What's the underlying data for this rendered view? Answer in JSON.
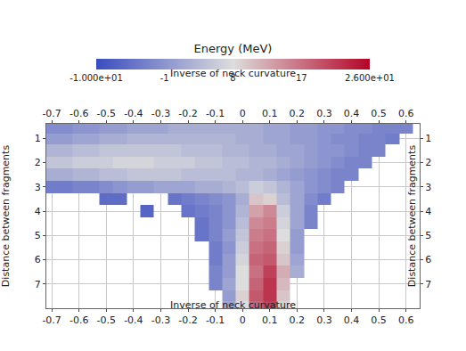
{
  "chart_data": {
    "type": "heatmap",
    "x_label": "Inverse of neck curvature",
    "y_label": "Distance between fragments",
    "x": [
      -0.7,
      -0.65,
      -0.6,
      -0.55,
      -0.5,
      -0.45,
      -0.4,
      -0.35,
      -0.3,
      -0.25,
      -0.2,
      -0.15,
      -0.1,
      -0.05,
      0,
      0.05,
      0.1,
      0.15,
      0.2,
      0.25,
      0.3,
      0.35,
      0.4,
      0.45,
      0.5,
      0.55,
      0.6
    ],
    "y": [
      0.6,
      1,
      1.5,
      2,
      2.5,
      3,
      3.5,
      4,
      4.5,
      5,
      5.5,
      6,
      6.5,
      7,
      7.5,
      7.9
    ],
    "z": [
      [
        -2,
        -2,
        -1,
        -1,
        0,
        0,
        1,
        1,
        1,
        2,
        2,
        2,
        2,
        2,
        2,
        2,
        1,
        1,
        0,
        0,
        -1,
        -1,
        -2,
        -2,
        -3,
        -3,
        -3
      ],
      [
        0,
        0,
        1,
        1,
        2,
        2,
        3,
        3,
        3,
        3,
        3,
        3,
        3,
        3,
        2,
        2,
        1,
        1,
        0,
        0,
        -1,
        -2,
        -2,
        -3,
        -3,
        -4,
        null
      ],
      [
        3,
        3,
        4,
        4,
        5,
        5,
        5,
        5,
        5,
        5,
        4,
        4,
        4,
        3,
        3,
        2,
        2,
        1,
        1,
        0,
        -1,
        -1,
        -2,
        -3,
        -3,
        null,
        null
      ],
      [
        5,
        5,
        6,
        6,
        6,
        7,
        7,
        7,
        6,
        6,
        6,
        5,
        5,
        4,
        4,
        3,
        3,
        2,
        1,
        0,
        -1,
        -2,
        -3,
        -3,
        null,
        null,
        null
      ],
      [
        2,
        2,
        3,
        3,
        4,
        4,
        5,
        5,
        5,
        5,
        4,
        4,
        4,
        4,
        3,
        3,
        2,
        1,
        0,
        -1,
        -2,
        -3,
        -3,
        null,
        null,
        null,
        null
      ],
      [
        -4,
        -4,
        -3,
        -3,
        -2,
        -1,
        0,
        0,
        1,
        1,
        1,
        2,
        2,
        3,
        4,
        6,
        5,
        3,
        1,
        -1,
        -2,
        -3,
        null,
        null,
        null,
        null,
        null
      ],
      [
        null,
        null,
        null,
        null,
        -6,
        -6,
        null,
        null,
        null,
        -5,
        -4,
        -3,
        -2,
        -1,
        2,
        10,
        9,
        4,
        1,
        -2,
        -4,
        null,
        null,
        null,
        null,
        null,
        null
      ],
      [
        null,
        null,
        null,
        null,
        null,
        null,
        null,
        -7,
        null,
        null,
        -5,
        -4,
        -3,
        -1,
        3,
        13,
        15,
        6,
        1,
        -3,
        null,
        null,
        null,
        null,
        null,
        null,
        null
      ],
      [
        null,
        null,
        null,
        null,
        null,
        null,
        null,
        null,
        null,
        null,
        null,
        -5,
        -3,
        -1,
        4,
        15,
        16,
        7,
        1,
        -3,
        null,
        null,
        null,
        null,
        null,
        null,
        null
      ],
      [
        null,
        null,
        null,
        null,
        null,
        null,
        null,
        null,
        null,
        null,
        null,
        -5,
        -3,
        0,
        5,
        16,
        17,
        8,
        0,
        null,
        null,
        null,
        null,
        null,
        null,
        null,
        null
      ],
      [
        null,
        null,
        null,
        null,
        null,
        null,
        null,
        null,
        null,
        null,
        null,
        null,
        -4,
        -1,
        6,
        17,
        18,
        9,
        0,
        null,
        null,
        null,
        null,
        null,
        null,
        null,
        null
      ],
      [
        null,
        null,
        null,
        null,
        null,
        null,
        null,
        null,
        null,
        null,
        null,
        null,
        -4,
        0,
        7,
        18,
        19,
        10,
        1,
        null,
        null,
        null,
        null,
        null,
        null,
        null,
        null
      ],
      [
        null,
        null,
        null,
        null,
        null,
        null,
        null,
        null,
        null,
        null,
        null,
        null,
        -3,
        0,
        8,
        17,
        21,
        12,
        2,
        null,
        null,
        null,
        null,
        null,
        null,
        null,
        null
      ],
      [
        null,
        null,
        null,
        null,
        null,
        null,
        null,
        null,
        null,
        null,
        null,
        null,
        -3,
        1,
        8,
        18,
        22,
        11,
        null,
        null,
        null,
        null,
        null,
        null,
        null,
        null,
        null
      ],
      [
        null,
        null,
        null,
        null,
        null,
        null,
        null,
        null,
        null,
        null,
        null,
        null,
        null,
        0,
        9,
        19,
        22,
        10,
        null,
        null,
        null,
        null,
        null,
        null,
        null,
        null,
        null
      ],
      [
        null,
        null,
        null,
        null,
        null,
        null,
        null,
        null,
        null,
        null,
        null,
        null,
        null,
        1,
        8,
        18,
        21,
        9,
        null,
        null,
        null,
        null,
        null,
        null,
        null,
        null,
        null
      ]
    ],
    "xlim": [
      -0.72,
      0.65
    ],
    "xticks": [
      -0.7,
      -0.6,
      -0.5,
      -0.4,
      -0.3,
      -0.2,
      -0.1,
      0,
      0.1,
      0.2,
      0.3,
      0.4,
      0.5,
      0.6
    ],
    "ylim": [
      8,
      0.4
    ],
    "yticks": [
      1,
      2,
      3,
      4,
      5,
      6,
      7
    ],
    "colors": [
      "#3b4cc0",
      "#dddddd",
      "#b40426"
    ],
    "colorbar": {
      "title": "Energy (MeV)",
      "range": [
        -10,
        26
      ],
      "ticks": [
        {
          "value": -10,
          "label": "-1.000e+01"
        },
        -1,
        8,
        17,
        {
          "value": 26,
          "label": "2.600e+01"
        }
      ]
    },
    "grid": true
  }
}
